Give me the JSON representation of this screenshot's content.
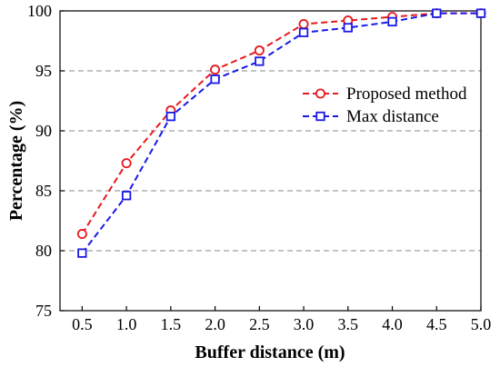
{
  "chart_data": {
    "type": "line",
    "xlabel": "Buffer distance (m)",
    "ylabel": "Percentage (%)",
    "x": [
      0.5,
      1.0,
      1.5,
      2.0,
      2.5,
      3.0,
      3.5,
      4.0,
      4.5,
      5.0
    ],
    "x_tick_labels": [
      "0.5",
      "1.0",
      "1.5",
      "2.0",
      "2.5",
      "3.0",
      "3.5",
      "4.0",
      "4.5",
      "5.0"
    ],
    "y_tick_labels": [
      "75",
      "80",
      "85",
      "90",
      "95",
      "100"
    ],
    "xlim": [
      0.25,
      5.0
    ],
    "ylim": [
      75,
      100
    ],
    "grid": true,
    "legend_placement": "upper-right",
    "series": [
      {
        "name": "Proposed method",
        "color": "#e8191f",
        "marker": "circle",
        "line": "dashed",
        "values": [
          81.4,
          87.3,
          91.7,
          95.1,
          96.7,
          98.9,
          99.2,
          99.5,
          99.8,
          99.8
        ]
      },
      {
        "name": "Max distance",
        "color": "#1a1ae6",
        "marker": "square",
        "line": "dashed",
        "values": [
          79.8,
          84.6,
          91.2,
          94.3,
          95.8,
          98.2,
          98.6,
          99.1,
          99.8,
          99.8
        ]
      }
    ]
  }
}
